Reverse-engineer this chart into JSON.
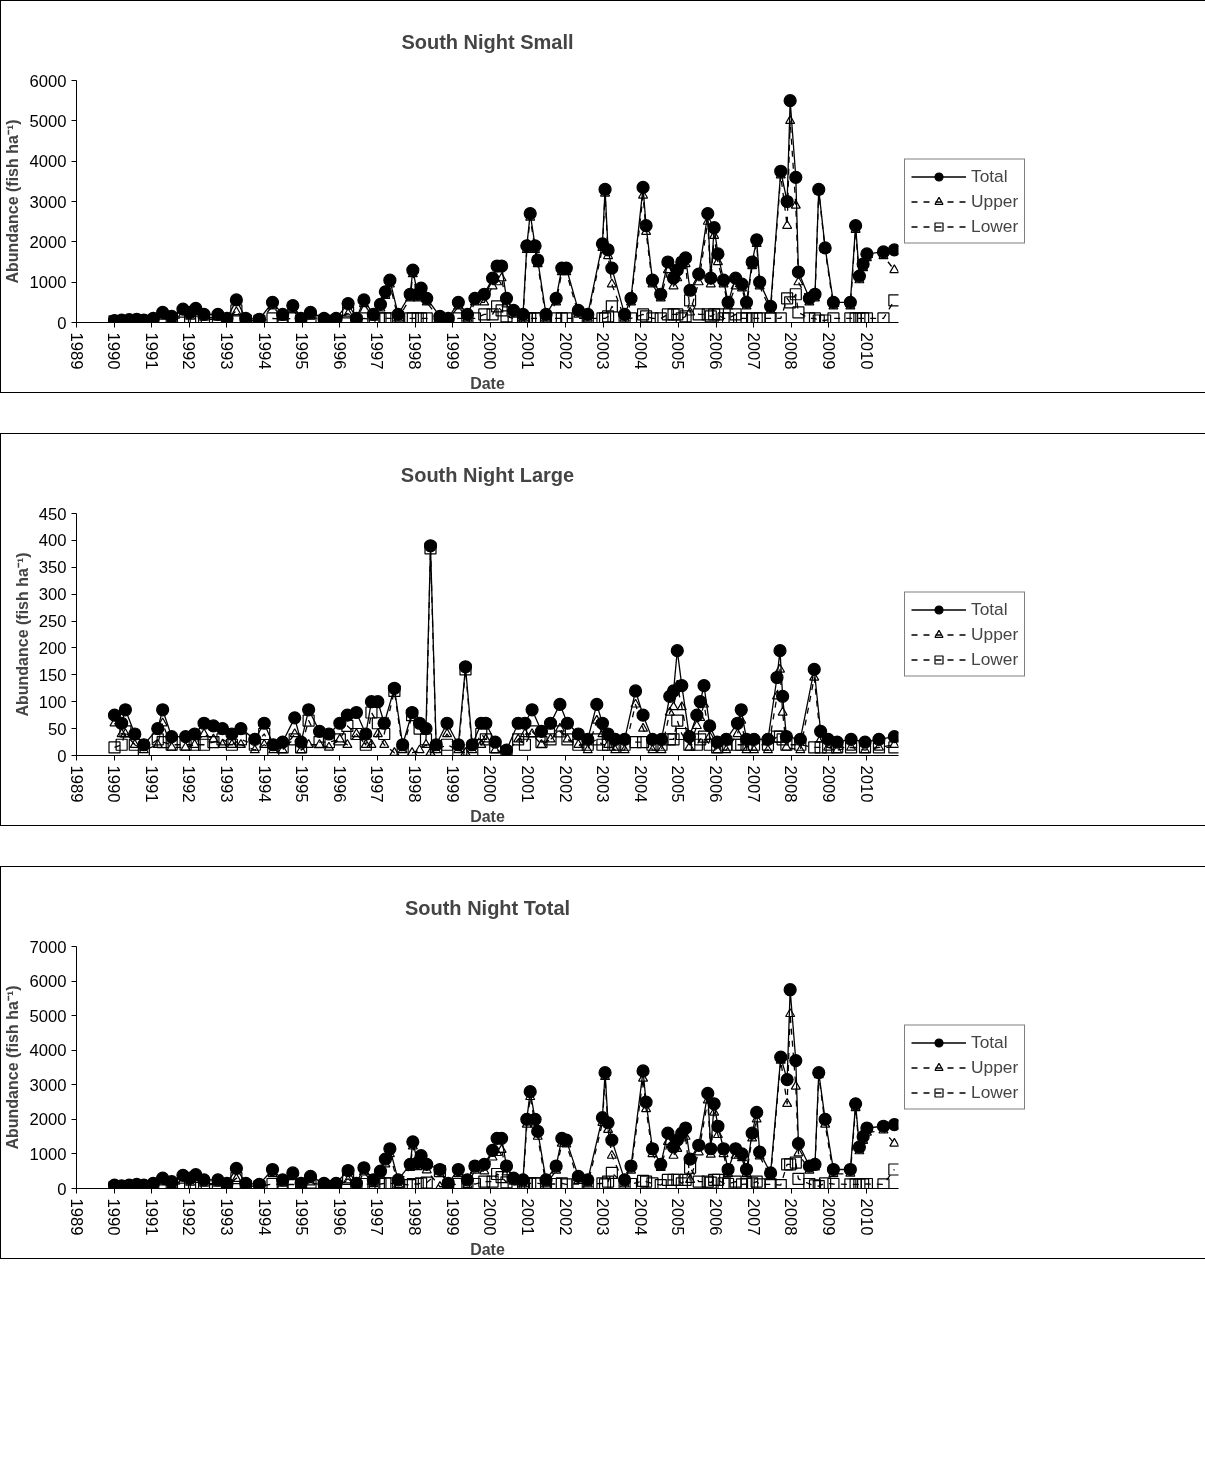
{
  "chart_data": [
    {
      "type": "line",
      "title": "South Night Small",
      "xlabel": "Date",
      "ylabel": "Abundance (fish ha⁻¹)",
      "legend": "right",
      "xlim": [
        1989,
        2010.85
      ],
      "xticks": [
        1989,
        1990,
        1991,
        1992,
        1993,
        1994,
        1995,
        1996,
        1997,
        1998,
        1999,
        2000,
        2001,
        2002,
        2003,
        2004,
        2005,
        2006,
        2007,
        2008,
        2009,
        2010
      ],
      "ylim": [
        0,
        6000
      ],
      "yticks": [
        0,
        1000,
        2000,
        3000,
        4000,
        5000,
        6000
      ],
      "x": [
        1990.01,
        1990.2,
        1990.4,
        1990.6,
        1990.79,
        1991.04,
        1991.29,
        1991.53,
        1991.83,
        1992.02,
        1992.17,
        1992.39,
        1992.76,
        1993.0,
        1993.25,
        1993.5,
        1993.86,
        1994.21,
        1994.48,
        1994.75,
        1994.97,
        1995.22,
        1995.58,
        1995.9,
        1996.22,
        1996.44,
        1996.64,
        1996.89,
        1997.08,
        1997.21,
        1997.33,
        1997.55,
        1997.87,
        1997.94,
        1998.07,
        1998.16,
        1998.31,
        1998.66,
        1998.88,
        1999.15,
        1999.39,
        1999.59,
        1999.84,
        2000.06,
        2000.18,
        2000.3,
        2000.43,
        2000.62,
        2000.87,
        2000.97,
        2001.06,
        2001.19,
        2001.26,
        2001.48,
        2001.75,
        2001.9,
        2002.02,
        2002.34,
        2002.59,
        2002.98,
        2003.05,
        2003.13,
        2003.23,
        2003.57,
        2003.74,
        2004.06,
        2004.14,
        2004.31,
        2004.53,
        2004.72,
        2004.87,
        2004.97,
        2005.09,
        2005.19,
        2005.31,
        2005.54,
        2005.78,
        2005.86,
        2005.95,
        2006.05,
        2006.2,
        2006.32,
        2006.52,
        2006.69,
        2006.81,
        2006.96,
        2007.08,
        2007.16,
        2007.45,
        2007.72,
        2007.89,
        2007.97,
        2008.12,
        2008.19,
        2008.48,
        2008.63,
        2008.73,
        2008.9,
        2009.12,
        2009.57,
        2009.71,
        2009.81,
        2009.91,
        2010.01,
        2010.45,
        2010.74
      ],
      "series": [
        {
          "name": "Total",
          "color": "#000000",
          "marker": "circle",
          "line_style": "solid",
          "values": [
            50,
            60,
            70,
            80,
            60,
            100,
            250,
            150,
            330,
            250,
            350,
            200,
            200,
            100,
            560,
            100,
            80,
            500,
            200,
            420,
            100,
            250,
            100,
            100,
            470,
            100,
            560,
            200,
            450,
            760,
            1050,
            200,
            700,
            1300,
            700,
            850,
            600,
            150,
            100,
            500,
            200,
            600,
            700,
            1100,
            1400,
            1400,
            600,
            300,
            200,
            1900,
            2700,
            1900,
            1550,
            200,
            600,
            1350,
            1350,
            300,
            200,
            1950,
            3300,
            1800,
            1350,
            200,
            600,
            3350,
            2400,
            1050,
            700,
            1500,
            1100,
            1300,
            1500,
            1600,
            800,
            1200,
            2700,
            1100,
            2350,
            1700,
            1050,
            500,
            1100,
            950,
            500,
            1500,
            2050,
            1000,
            400,
            3750,
            3000,
            5500,
            3600,
            1250,
            600,
            700,
            3300,
            1850,
            500,
            500,
            2400,
            1150,
            1450,
            1700,
            1750,
            1800
          ]
        },
        {
          "name": "Upper",
          "color": "#000000",
          "marker": "triangle",
          "line_style": "dashed",
          "values": [
            20,
            30,
            40,
            40,
            30,
            50,
            150,
            80,
            200,
            150,
            220,
            120,
            120,
            50,
            260,
            50,
            40,
            400,
            120,
            320,
            50,
            150,
            50,
            50,
            220,
            50,
            460,
            120,
            350,
            660,
            950,
            100,
            600,
            1200,
            600,
            750,
            500,
            80,
            50,
            400,
            100,
            500,
            500,
            900,
            1000,
            1100,
            450,
            200,
            100,
            1800,
            2600,
            1800,
            1450,
            100,
            500,
            1250,
            1250,
            200,
            100,
            1850,
            3200,
            1650,
            950,
            100,
            500,
            3150,
            2250,
            950,
            600,
            1300,
            900,
            1100,
            1400,
            1450,
            250,
            1000,
            2500,
            950,
            2150,
            1500,
            950,
            400,
            900,
            850,
            400,
            1400,
            1950,
            900,
            300,
            3650,
            2400,
            5000,
            2900,
            1000,
            500,
            600,
            3250,
            1800,
            400,
            400,
            2300,
            1050,
            1350,
            1600,
            1650,
            1300
          ]
        },
        {
          "name": "Lower",
          "color": "#000000",
          "marker": "square",
          "line_style": "dashed",
          "values": [
            30,
            30,
            30,
            40,
            30,
            50,
            100,
            70,
            130,
            100,
            130,
            80,
            80,
            50,
            300,
            50,
            40,
            100,
            80,
            100,
            50,
            100,
            50,
            50,
            250,
            50,
            100,
            80,
            100,
            100,
            100,
            100,
            100,
            100,
            100,
            100,
            100,
            70,
            50,
            100,
            100,
            100,
            200,
            200,
            400,
            300,
            150,
            100,
            100,
            100,
            100,
            100,
            100,
            100,
            100,
            100,
            100,
            100,
            100,
            100,
            100,
            150,
            400,
            100,
            100,
            200,
            150,
            100,
            100,
            200,
            200,
            200,
            100,
            150,
            550,
            200,
            200,
            150,
            200,
            200,
            100,
            100,
            200,
            100,
            100,
            100,
            100,
            100,
            100,
            100,
            600,
            500,
            700,
            250,
            100,
            100,
            50,
            50,
            100,
            100,
            100,
            100,
            100,
            100,
            100,
            550
          ]
        }
      ]
    },
    {
      "type": "line",
      "title": "South Night Large",
      "xlabel": "Date",
      "ylabel": "Abundance (fish ha⁻¹)",
      "legend": "right",
      "xlim": [
        1989,
        2010.85
      ],
      "xticks": [
        1989,
        1990,
        1991,
        1992,
        1993,
        1994,
        1995,
        1996,
        1997,
        1998,
        1999,
        2000,
        2001,
        2002,
        2003,
        2004,
        2005,
        2006,
        2007,
        2008,
        2009,
        2010
      ],
      "ylim": [
        0,
        450
      ],
      "yticks": [
        0,
        50,
        100,
        150,
        200,
        250,
        300,
        350,
        400,
        450
      ],
      "x": [
        1990.01,
        1990.2,
        1990.3,
        1990.55,
        1990.79,
        1991.16,
        1991.29,
        1991.53,
        1991.9,
        1992.14,
        1992.39,
        1992.64,
        1992.88,
        1993.13,
        1993.37,
        1993.74,
        1993.99,
        1994.23,
        1994.48,
        1994.8,
        1994.97,
        1995.17,
        1995.46,
        1995.71,
        1996.0,
        1996.2,
        1996.44,
        1996.69,
        1996.84,
        1997.01,
        1997.18,
        1997.45,
        1997.67,
        1997.92,
        1998.12,
        1998.29,
        1998.41,
        1998.56,
        1998.85,
        1999.15,
        1999.34,
        1999.52,
        1999.76,
        1999.88,
        2000.13,
        2000.43,
        2000.74,
        2000.92,
        2001.11,
        2001.36,
        2001.6,
        2001.85,
        2002.05,
        2002.34,
        2002.59,
        2002.83,
        2002.98,
        2003.13,
        2003.32,
        2003.57,
        2003.86,
        2004.06,
        2004.31,
        2004.55,
        2004.77,
        2004.87,
        2004.97,
        2005.09,
        2005.29,
        2005.49,
        2005.58,
        2005.68,
        2005.83,
        2006.03,
        2006.27,
        2006.57,
        2006.67,
        2006.81,
        2007.01,
        2007.38,
        2007.62,
        2007.7,
        2007.77,
        2007.87,
        2008.24,
        2008.61,
        2008.78,
        2008.98,
        2009.22,
        2009.59,
        2009.96,
        2010.33,
        2010.74
      ],
      "series": [
        {
          "name": "Total",
          "color": "#000000",
          "marker": "circle",
          "line_style": "solid",
          "values": [
            75,
            60,
            85,
            40,
            20,
            50,
            85,
            35,
            35,
            40,
            60,
            55,
            50,
            40,
            50,
            30,
            60,
            20,
            25,
            70,
            25,
            85,
            45,
            40,
            60,
            75,
            80,
            40,
            100,
            100,
            60,
            125,
            20,
            80,
            60,
            50,
            390,
            20,
            60,
            20,
            165,
            20,
            60,
            60,
            25,
            10,
            60,
            60,
            85,
            45,
            60,
            95,
            60,
            40,
            30,
            95,
            60,
            40,
            30,
            30,
            120,
            75,
            30,
            30,
            110,
            120,
            195,
            130,
            35,
            75,
            100,
            130,
            55,
            25,
            30,
            60,
            85,
            30,
            30,
            30,
            145,
            195,
            110,
            35,
            30,
            160,
            45,
            30,
            25,
            30,
            25,
            30,
            35
          ]
        },
        {
          "name": "Upper",
          "color": "#000000",
          "marker": "triangle",
          "line_style": "dashed",
          "values": [
            60,
            40,
            40,
            20,
            10,
            20,
            60,
            15,
            15,
            20,
            40,
            30,
            20,
            20,
            20,
            10,
            20,
            10,
            10,
            40,
            10,
            20,
            20,
            15,
            30,
            20,
            40,
            20,
            20,
            40,
            20,
            5,
            10,
            5,
            10,
            20,
            5,
            10,
            40,
            10,
            5,
            10,
            20,
            30,
            10,
            5,
            30,
            40,
            40,
            20,
            30,
            50,
            30,
            20,
            10,
            65,
            40,
            20,
            10,
            10,
            95,
            50,
            10,
            10,
            80,
            90,
            130,
            90,
            15,
            55,
            70,
            95,
            35,
            10,
            10,
            40,
            65,
            10,
            10,
            10,
            110,
            160,
            80,
            15,
            10,
            145,
            30,
            15,
            10,
            15,
            10,
            15,
            20
          ]
        },
        {
          "name": "Lower",
          "color": "#000000",
          "marker": "square",
          "line_style": "dashed",
          "values": [
            15,
            20,
            45,
            20,
            10,
            30,
            25,
            20,
            20,
            20,
            20,
            25,
            30,
            20,
            30,
            20,
            40,
            10,
            15,
            30,
            15,
            65,
            25,
            25,
            30,
            55,
            40,
            20,
            80,
            60,
            40,
            120,
            10,
            75,
            50,
            30,
            385,
            10,
            20,
            10,
            160,
            10,
            40,
            30,
            15,
            5,
            30,
            20,
            45,
            25,
            30,
            45,
            30,
            20,
            20,
            30,
            20,
            20,
            20,
            20,
            25,
            25,
            20,
            20,
            30,
            30,
            65,
            40,
            20,
            20,
            30,
            35,
            20,
            15,
            20,
            20,
            20,
            20,
            20,
            20,
            35,
            35,
            30,
            20,
            20,
            15,
            15,
            15,
            15,
            15,
            15,
            15,
            15
          ]
        }
      ]
    },
    {
      "type": "line",
      "title": "South Night Total",
      "xlabel": "Date",
      "ylabel": "Abundance (fish ha⁻¹)",
      "legend": "right",
      "xlim": [
        1989,
        2010.85
      ],
      "xticks": [
        1989,
        1990,
        1991,
        1992,
        1993,
        1994,
        1995,
        1996,
        1997,
        1998,
        1999,
        2000,
        2001,
        2002,
        2003,
        2004,
        2005,
        2006,
        2007,
        2008,
        2009,
        2010
      ],
      "ylim": [
        0,
        7000
      ],
      "yticks": [
        0,
        1000,
        2000,
        3000,
        4000,
        5000,
        6000,
        7000
      ],
      "x": [
        1990.01,
        1990.2,
        1990.4,
        1990.6,
        1990.79,
        1991.04,
        1991.29,
        1991.53,
        1991.83,
        1992.02,
        1992.17,
        1992.39,
        1992.76,
        1993.0,
        1993.25,
        1993.5,
        1993.86,
        1994.21,
        1994.48,
        1994.75,
        1994.97,
        1995.22,
        1995.58,
        1995.9,
        1996.22,
        1996.44,
        1996.64,
        1996.89,
        1997.08,
        1997.21,
        1997.33,
        1997.55,
        1997.87,
        1997.94,
        1998.07,
        1998.16,
        1998.31,
        1998.66,
        1998.88,
        1999.15,
        1999.39,
        1999.59,
        1999.84,
        2000.06,
        2000.18,
        2000.3,
        2000.43,
        2000.62,
        2000.87,
        2000.97,
        2001.06,
        2001.19,
        2001.26,
        2001.48,
        2001.75,
        2001.9,
        2002.02,
        2002.34,
        2002.59,
        2002.98,
        2003.05,
        2003.13,
        2003.23,
        2003.57,
        2003.74,
        2004.06,
        2004.14,
        2004.31,
        2004.53,
        2004.72,
        2004.87,
        2004.97,
        2005.09,
        2005.19,
        2005.31,
        2005.54,
        2005.78,
        2005.86,
        2005.95,
        2006.05,
        2006.2,
        2006.32,
        2006.52,
        2006.69,
        2006.81,
        2006.96,
        2007.08,
        2007.16,
        2007.45,
        2007.72,
        2007.89,
        2007.97,
        2008.12,
        2008.19,
        2008.48,
        2008.63,
        2008.73,
        2008.9,
        2009.12,
        2009.57,
        2009.71,
        2009.81,
        2009.91,
        2010.01,
        2010.45,
        2010.74
      ],
      "series": [
        {
          "name": "Total",
          "color": "#000000",
          "marker": "circle",
          "line_style": "solid",
          "values": [
            100,
            80,
            100,
            120,
            100,
            150,
            300,
            200,
            380,
            300,
            400,
            250,
            250,
            150,
            580,
            150,
            120,
            550,
            250,
            450,
            150,
            350,
            150,
            150,
            520,
            150,
            600,
            250,
            500,
            850,
            1150,
            250,
            700,
            1350,
            750,
            950,
            700,
            550,
            150,
            550,
            250,
            650,
            700,
            1100,
            1450,
            1450,
            650,
            300,
            250,
            2000,
            2800,
            2000,
            1650,
            250,
            650,
            1450,
            1400,
            350,
            250,
            2050,
            3350,
            1900,
            1400,
            250,
            650,
            3400,
            2500,
            1150,
            700,
            1600,
            1200,
            1400,
            1600,
            1750,
            850,
            1250,
            2750,
            1150,
            2450,
            1800,
            1150,
            550,
            1150,
            1000,
            550,
            1600,
            2200,
            1050,
            450,
            3800,
            3150,
            5750,
            3700,
            1300,
            650,
            700,
            3350,
            2000,
            550,
            550,
            2450,
            1200,
            1500,
            1750,
            1800,
            1850
          ]
        },
        {
          "name": "Upper",
          "color": "#000000",
          "marker": "triangle",
          "line_style": "dashed",
          "values": [
            60,
            40,
            50,
            60,
            50,
            80,
            180,
            100,
            230,
            170,
            250,
            140,
            140,
            70,
            280,
            70,
            60,
            420,
            140,
            330,
            70,
            180,
            70,
            70,
            240,
            70,
            470,
            130,
            370,
            700,
            1000,
            110,
            600,
            1220,
            620,
            800,
            530,
            50,
            60,
            420,
            110,
            520,
            500,
            900,
            1030,
            1120,
            470,
            200,
            120,
            1850,
            2650,
            1850,
            1500,
            120,
            520,
            1300,
            1280,
            220,
            120,
            1900,
            3230,
            1700,
            950,
            120,
            520,
            3180,
            2300,
            1000,
            600,
            1350,
            950,
            1150,
            1450,
            1500,
            250,
            1050,
            2550,
            980,
            2200,
            1550,
            1000,
            420,
            950,
            880,
            420,
            1450,
            2000,
            930,
            330,
            3700,
            2450,
            5050,
            2950,
            1020,
            520,
            610,
            3280,
            1850,
            420,
            430,
            2330,
            1080,
            1380,
            1620,
            1680,
            1300
          ]
        },
        {
          "name": "Lower",
          "color": "#000000",
          "marker": "square",
          "line_style": "dashed",
          "values": [
            40,
            40,
            50,
            60,
            50,
            70,
            120,
            100,
            150,
            130,
            150,
            110,
            110,
            80,
            300,
            80,
            60,
            130,
            110,
            120,
            80,
            170,
            80,
            80,
            280,
            80,
            130,
            120,
            130,
            150,
            150,
            140,
            100,
            130,
            130,
            150,
            170,
            500,
            90,
            130,
            140,
            130,
            200,
            200,
            420,
            330,
            180,
            100,
            130,
            150,
            150,
            150,
            150,
            130,
            130,
            150,
            120,
            130,
            130,
            150,
            120,
            200,
            450,
            130,
            130,
            220,
            200,
            150,
            100,
            250,
            250,
            250,
            150,
            250,
            600,
            200,
            200,
            170,
            250,
            250,
            150,
            130,
            200,
            120,
            130,
            150,
            200,
            120,
            120,
            100,
            700,
            700,
            750,
            280,
            130,
            90,
            70,
            150,
            130,
            120,
            120,
            120,
            120,
            130,
            120,
            550
          ]
        }
      ]
    }
  ]
}
